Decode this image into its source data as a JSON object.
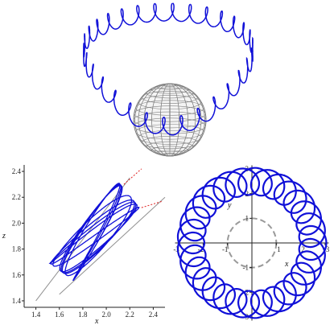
{
  "colors": {
    "curve": "#1010d8",
    "sphere": "#808080",
    "tangent": "#e02020",
    "guide": "#909090",
    "axis": "#222222",
    "unit_circle": "#999999"
  },
  "left_plot": {
    "xlabel": "x",
    "ylabel": "z",
    "x_ticks": [
      "1.4",
      "1.6",
      "1.8",
      "2.0",
      "2.2",
      "2.4"
    ],
    "y_ticks": [
      "1.4",
      "1.6",
      "1.8",
      "2.0",
      "2.2",
      "2.4"
    ]
  },
  "right_plot": {
    "xlabel": "x",
    "ylabel": "y",
    "x_ticks": [
      "-3",
      "-2",
      "-1",
      "1",
      "2",
      "3"
    ],
    "y_ticks": [
      "-3",
      "-2",
      "-1",
      "1",
      "2",
      "3"
    ]
  },
  "chart_data": [
    {
      "type": "line",
      "panel": "left",
      "xlabel": "x",
      "ylabel": "z",
      "xlim": [
        1.3,
        2.5
      ],
      "ylim": [
        1.35,
        2.45
      ],
      "guide_lines": [
        {
          "x": [
            1.4,
            2.2
          ],
          "z": [
            1.4,
            2.35
          ]
        },
        {
          "x": [
            1.6,
            2.5
          ],
          "z": [
            1.45,
            2.2
          ]
        }
      ],
      "tangent_lines": [
        {
          "x": [
            2.15,
            2.3
          ],
          "z": [
            2.3,
            2.42
          ]
        },
        {
          "x": [
            2.3,
            2.48
          ],
          "z": [
            2.12,
            2.17
          ]
        }
      ]
    },
    {
      "type": "line",
      "panel": "right",
      "xlabel": "x",
      "ylabel": "y",
      "xlim": [
        -3.2,
        3.2
      ],
      "ylim": [
        -3.2,
        3.2
      ],
      "unit_circle_radius": 1,
      "orbit": {
        "base_radius": 2.5,
        "loops": 30
      }
    }
  ]
}
